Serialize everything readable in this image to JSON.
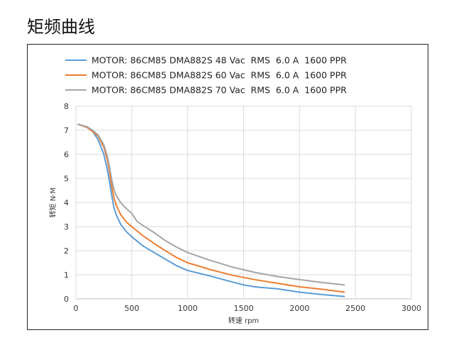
{
  "page": {
    "heading": "矩频曲线"
  },
  "chart_data": {
    "type": "line",
    "title": "",
    "xlabel": "转速 rpm",
    "ylabel": "转矩 N·M",
    "xlim": [
      0,
      3000
    ],
    "ylim": [
      0,
      8
    ],
    "xticks": [
      0,
      500,
      1000,
      1500,
      2000,
      2500,
      3000
    ],
    "yticks": [
      0,
      1,
      2,
      3,
      4,
      5,
      6,
      7,
      8
    ],
    "grid": true,
    "legend_position": "top",
    "series": [
      {
        "name": "MOTOR: 86CM85 DMA882S 48 Vac  RMS  6.0 A  1600 PPR",
        "color": "#5b9bd5",
        "x": [
          20,
          100,
          150,
          200,
          250,
          280,
          300,
          320,
          340,
          360,
          400,
          450,
          500,
          600,
          700,
          800,
          900,
          1000,
          1200,
          1400,
          1500,
          1600,
          1800,
          2000,
          2200,
          2400
        ],
        "y": [
          7.25,
          7.12,
          6.95,
          6.6,
          6.0,
          5.4,
          4.9,
          4.3,
          3.8,
          3.5,
          3.1,
          2.8,
          2.58,
          2.2,
          1.92,
          1.65,
          1.38,
          1.18,
          0.95,
          0.7,
          0.58,
          0.5,
          0.42,
          0.28,
          0.18,
          0.1
        ]
      },
      {
        "name": "MOTOR: 86CM85 DMA882S 60 Vac  RMS  6.0 A  1600 PPR",
        "color": "#ed7d31",
        "x": [
          20,
          100,
          150,
          200,
          250,
          280,
          300,
          320,
          340,
          360,
          400,
          450,
          500,
          600,
          700,
          800,
          900,
          1000,
          1200,
          1400,
          1600,
          1800,
          2000,
          2200,
          2400
        ],
        "y": [
          7.25,
          7.12,
          6.95,
          6.75,
          6.3,
          5.8,
          5.3,
          4.7,
          4.2,
          3.9,
          3.5,
          3.2,
          3.0,
          2.62,
          2.3,
          2.0,
          1.72,
          1.5,
          1.22,
          0.98,
          0.8,
          0.65,
          0.5,
          0.4,
          0.28
        ]
      },
      {
        "name": "MOTOR: 86CM85 DMA882S 70 Vac  RMS  6.0 A  1600 PPR",
        "color": "#a5a5a5",
        "x": [
          20,
          100,
          150,
          200,
          250,
          280,
          300,
          320,
          340,
          360,
          400,
          450,
          500,
          550,
          600,
          700,
          800,
          900,
          1000,
          1200,
          1400,
          1600,
          1800,
          2000,
          2200,
          2400
        ],
        "y": [
          7.25,
          7.15,
          7.0,
          6.8,
          6.4,
          5.95,
          5.5,
          4.95,
          4.55,
          4.3,
          4.0,
          3.75,
          3.55,
          3.2,
          3.05,
          2.75,
          2.42,
          2.15,
          1.92,
          1.6,
          1.32,
          1.1,
          0.93,
          0.8,
          0.68,
          0.58
        ]
      }
    ]
  }
}
